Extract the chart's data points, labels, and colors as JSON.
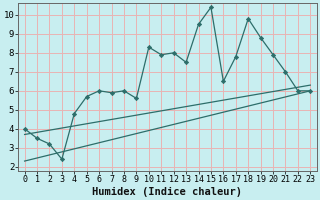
{
  "xlabel": "Humidex (Indice chaleur)",
  "background_color": "#c8eef0",
  "grid_color": "#e8b4b4",
  "line_color": "#2d6e6a",
  "xlim": [
    -0.5,
    23.5
  ],
  "ylim": [
    1.8,
    10.6
  ],
  "xticks": [
    0,
    1,
    2,
    3,
    4,
    5,
    6,
    7,
    8,
    9,
    10,
    11,
    12,
    13,
    14,
    15,
    16,
    17,
    18,
    19,
    20,
    21,
    22,
    23
  ],
  "yticks": [
    2,
    3,
    4,
    5,
    6,
    7,
    8,
    9,
    10
  ],
  "series1_x": [
    0,
    1,
    2,
    3,
    4,
    5,
    6,
    7,
    8,
    9,
    10,
    11,
    12,
    13,
    14,
    15,
    16,
    17,
    18,
    19,
    20,
    21,
    22,
    23
  ],
  "series1_y": [
    4.0,
    3.5,
    3.2,
    2.4,
    4.8,
    5.7,
    6.0,
    5.9,
    6.0,
    5.6,
    8.3,
    7.9,
    8.0,
    7.5,
    9.5,
    10.4,
    6.5,
    7.8,
    9.8,
    8.8,
    7.9,
    7.0,
    6.0,
    6.0
  ],
  "series2_x": [
    0,
    23
  ],
  "series2_y": [
    3.7,
    6.3
  ],
  "series3_x": [
    0,
    23
  ],
  "series3_y": [
    2.3,
    6.0
  ],
  "font_family": "monospace",
  "label_fontsize": 6.0,
  "xlabel_fontsize": 7.5
}
